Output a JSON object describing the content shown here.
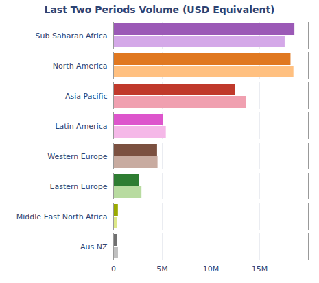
{
  "chart_data": {
    "type": "bar",
    "orientation": "horizontal",
    "title": "Last Two Periods Volume (USD Equivalent)",
    "categories": [
      "Sub Saharan Africa",
      "North America",
      "Asia Pacific",
      "Latin America",
      "Western Europe",
      "Eastern Europe",
      "Middle East North Africa",
      "Aus NZ"
    ],
    "series": [
      {
        "colors": [
          "#9b59b6",
          "#e07820",
          "#c0392b",
          "#dd55cc",
          "#7b5040",
          "#2e7d32",
          "#9aaa00",
          "#707070"
        ],
        "values": [
          18600000,
          18200000,
          12500000,
          5100000,
          4500000,
          2650000,
          480000,
          420000
        ]
      },
      {
        "colors": [
          "#d4a8e8",
          "#ffc080",
          "#f0a0b0",
          "#f5b8e8",
          "#c8aba0",
          "#b8dba0",
          "#dde888",
          "#c0c0c0"
        ],
        "values": [
          17600000,
          18500000,
          13600000,
          5400000,
          4550000,
          2900000,
          400000,
          490000
        ]
      }
    ],
    "xlim": [
      0,
      20000000
    ],
    "xticks": [
      0,
      {
        "value": 5000000,
        "label": "5M"
      },
      {
        "value": 10000000,
        "label": "10M"
      },
      {
        "value": 15000000,
        "label": "15M"
      }
    ],
    "grid": true
  }
}
